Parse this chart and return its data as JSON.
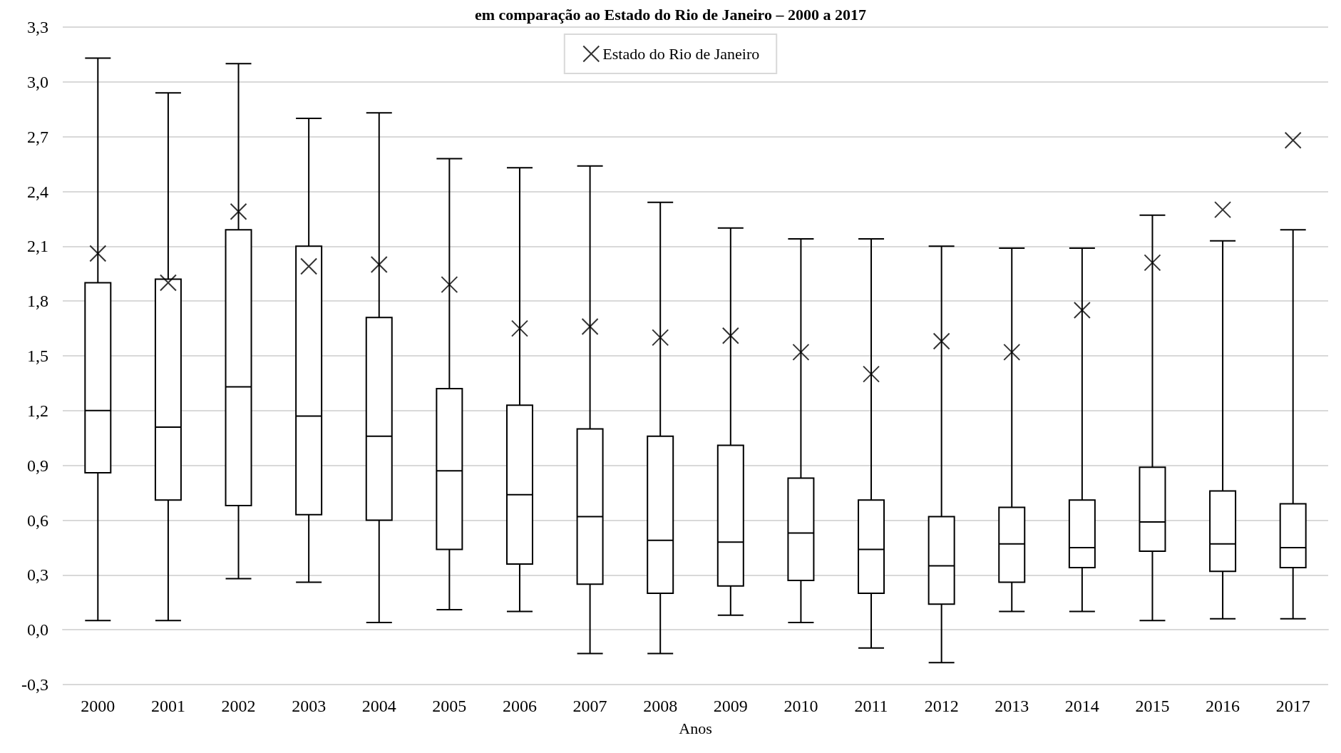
{
  "chart_data": {
    "type": "box",
    "title": "em comparação ao Estado do Rio de Janeiro – 2000 a 2017",
    "xlabel": "Anos",
    "categories": [
      "2000",
      "2001",
      "2002",
      "2003",
      "2004",
      "2005",
      "2006",
      "2007",
      "2008",
      "2009",
      "2010",
      "2011",
      "2012",
      "2013",
      "2014",
      "2015",
      "2016",
      "2017"
    ],
    "ylim": [
      -0.3,
      3.3
    ],
    "yticks": [
      {
        "value": -0.3,
        "label": "-0,3"
      },
      {
        "value": 0,
        "label": "0,0"
      },
      {
        "value": 0.3,
        "label": "0,3"
      },
      {
        "value": 0.6,
        "label": "0,6"
      },
      {
        "value": 0.9,
        "label": "0,9"
      },
      {
        "value": 1.2,
        "label": "1,2"
      },
      {
        "value": 1.5,
        "label": "1,5"
      },
      {
        "value": 1.8,
        "label": "1,8"
      },
      {
        "value": 2.1,
        "label": "2,1"
      },
      {
        "value": 2.4,
        "label": "2,4"
      },
      {
        "value": 2.7,
        "label": "2,7"
      },
      {
        "value": 3.0,
        "label": "3,0"
      },
      {
        "value": 3.3,
        "label": "3,3"
      }
    ],
    "grid": "y",
    "legend": "top",
    "marker": "cross",
    "series": [
      {
        "color": "#000000",
        "boxes": [
          {
            "low": 0.05,
            "q1": 0.86,
            "median": 1.2,
            "q3": 1.9,
            "high": 3.13
          },
          {
            "low": 0.05,
            "q1": 0.71,
            "median": 1.11,
            "q3": 1.92,
            "high": 2.94
          },
          {
            "low": 0.28,
            "q1": 0.68,
            "median": 1.33,
            "q3": 2.19,
            "high": 3.1
          },
          {
            "low": 0.26,
            "q1": 0.63,
            "median": 1.17,
            "q3": 2.1,
            "high": 2.8
          },
          {
            "low": 0.04,
            "q1": 0.6,
            "median": 1.06,
            "q3": 1.71,
            "high": 2.83
          },
          {
            "low": 0.11,
            "q1": 0.44,
            "median": 0.87,
            "q3": 1.32,
            "high": 2.58
          },
          {
            "low": 0.1,
            "q1": 0.36,
            "median": 0.74,
            "q3": 1.23,
            "high": 2.53
          },
          {
            "low": -0.13,
            "q1": 0.25,
            "median": 0.62,
            "q3": 1.1,
            "high": 2.54
          },
          {
            "low": -0.13,
            "q1": 0.2,
            "median": 0.49,
            "q3": 1.06,
            "high": 2.34
          },
          {
            "low": 0.08,
            "q1": 0.24,
            "median": 0.48,
            "q3": 1.01,
            "high": 2.2
          },
          {
            "low": 0.04,
            "q1": 0.27,
            "median": 0.53,
            "q3": 0.83,
            "high": 2.14
          },
          {
            "low": -0.1,
            "q1": 0.2,
            "median": 0.44,
            "q3": 0.71,
            "high": 2.14
          },
          {
            "low": -0.18,
            "q1": 0.14,
            "median": 0.35,
            "q3": 0.62,
            "high": 2.1
          },
          {
            "low": 0.1,
            "q1": 0.26,
            "median": 0.47,
            "q3": 0.67,
            "high": 2.09
          },
          {
            "low": 0.1,
            "q1": 0.34,
            "median": 0.45,
            "q3": 0.71,
            "high": 2.09
          },
          {
            "low": 0.05,
            "q1": 0.43,
            "median": 0.59,
            "q3": 0.89,
            "high": 2.27
          },
          {
            "low": 0.06,
            "q1": 0.32,
            "median": 0.47,
            "q3": 0.76,
            "high": 2.13
          },
          {
            "low": 0.06,
            "q1": 0.34,
            "median": 0.45,
            "q3": 0.69,
            "high": 2.19
          }
        ]
      },
      {
        "type": "scatter",
        "name": "Estado do Rio de Janeiro",
        "color": "#000000",
        "values": [
          2.06,
          1.9,
          2.29,
          1.99,
          2.0,
          1.89,
          1.65,
          1.66,
          1.6,
          1.61,
          1.52,
          1.4,
          1.58,
          1.52,
          1.75,
          2.01,
          2.3,
          2.68
        ]
      }
    ]
  }
}
